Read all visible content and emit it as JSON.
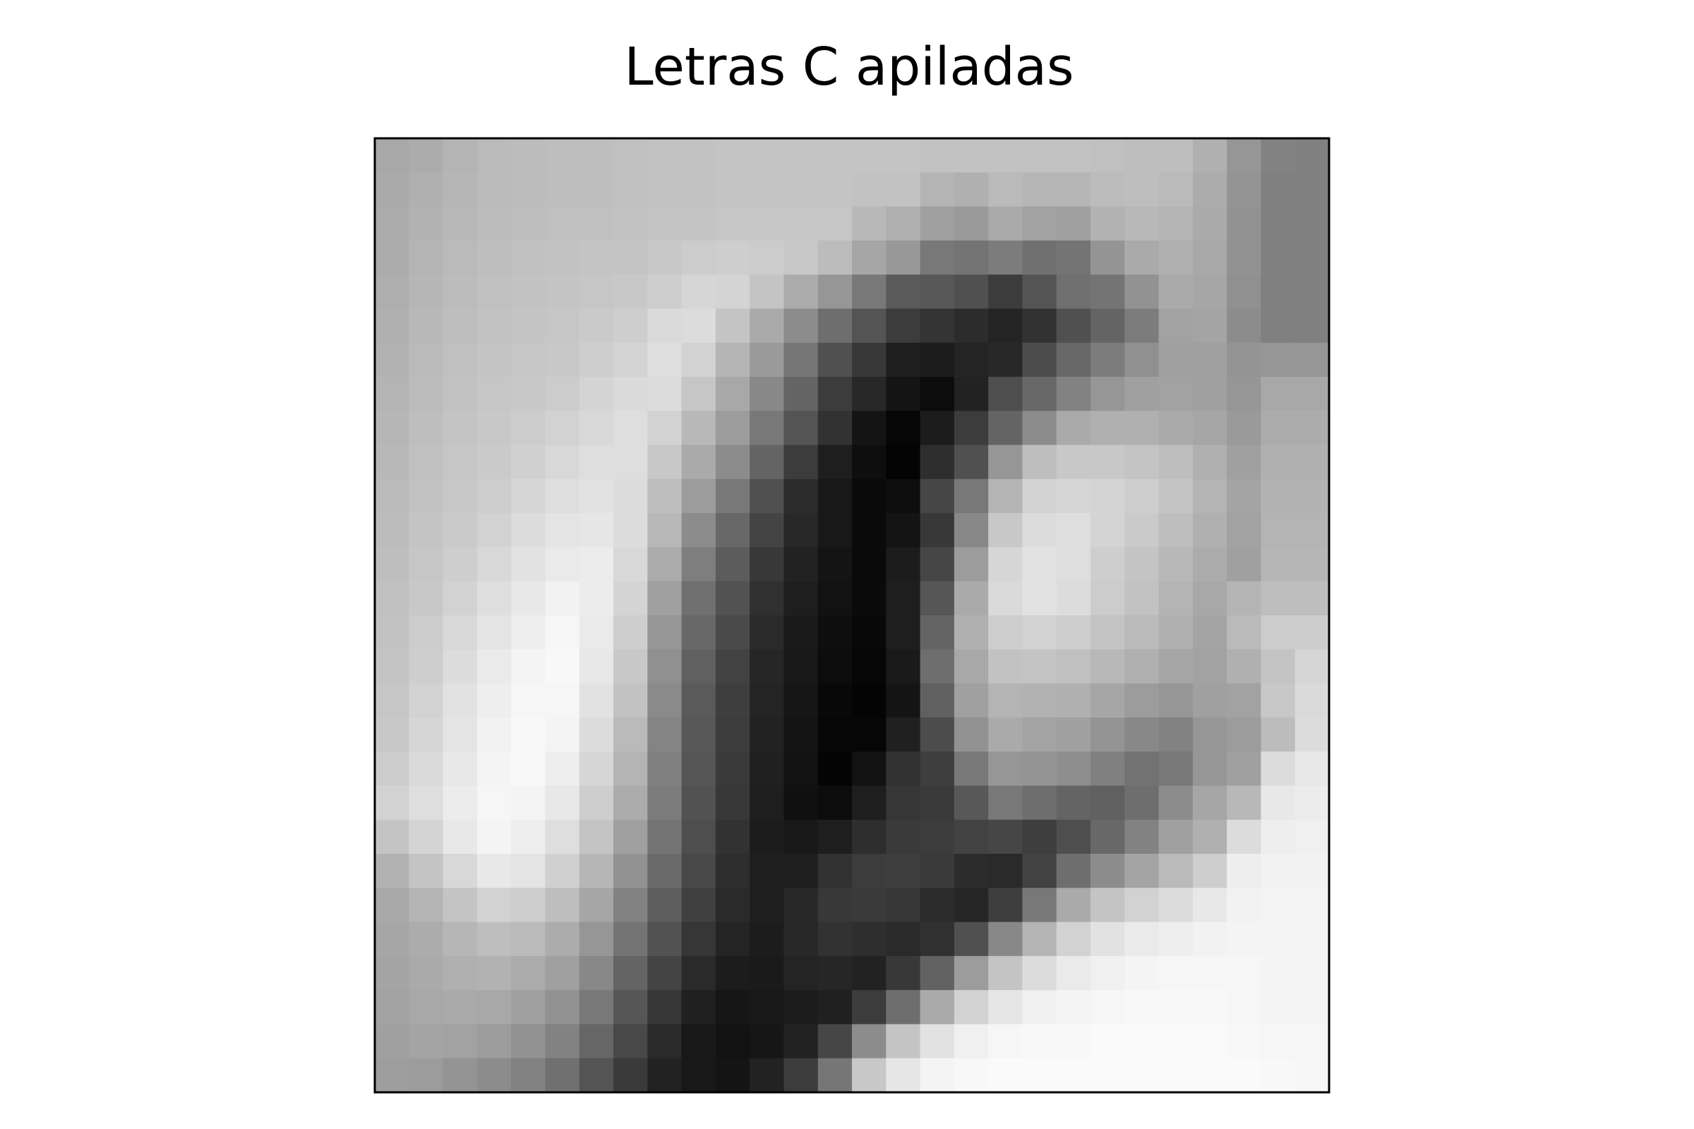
{
  "chart_data": {
    "type": "heatmap",
    "title": "Letras C apiladas",
    "xlabel": "",
    "ylabel": "",
    "axes_ticks": false,
    "colormap": "gray",
    "grid": false,
    "rows": 28,
    "cols": 28,
    "vmin": 0,
    "vmax": 255,
    "values": [
      [
        168,
        172,
        180,
        186,
        188,
        190,
        190,
        192,
        194,
        194,
        196,
        196,
        196,
        196,
        196,
        196,
        194,
        194,
        194,
        194,
        194,
        192,
        190,
        190,
        176,
        150,
        130,
        128
      ],
      [
        170,
        176,
        182,
        186,
        188,
        190,
        190,
        192,
        194,
        194,
        196,
        196,
        196,
        196,
        194,
        194,
        180,
        176,
        186,
        182,
        182,
        188,
        190,
        186,
        172,
        148,
        128,
        128
      ],
      [
        172,
        178,
        184,
        188,
        190,
        192,
        192,
        194,
        196,
        196,
        198,
        198,
        198,
        198,
        184,
        176,
        160,
        154,
        170,
        162,
        160,
        178,
        184,
        180,
        170,
        146,
        128,
        128
      ],
      [
        172,
        180,
        186,
        190,
        192,
        194,
        196,
        196,
        200,
        204,
        206,
        204,
        200,
        188,
        166,
        152,
        120,
        116,
        124,
        112,
        116,
        148,
        170,
        176,
        168,
        146,
        128,
        128
      ],
      [
        174,
        182,
        188,
        192,
        194,
        196,
        198,
        200,
        206,
        214,
        212,
        196,
        172,
        150,
        120,
        90,
        88,
        80,
        60,
        84,
        112,
        116,
        146,
        170,
        166,
        144,
        128,
        128
      ],
      [
        176,
        184,
        190,
        194,
        196,
        198,
        202,
        206,
        218,
        220,
        196,
        170,
        140,
        110,
        84,
        60,
        52,
        44,
        36,
        50,
        80,
        100,
        124,
        162,
        164,
        140,
        128,
        128
      ],
      [
        178,
        186,
        192,
        196,
        198,
        200,
        206,
        212,
        222,
        210,
        180,
        154,
        118,
        80,
        56,
        30,
        28,
        36,
        40,
        76,
        104,
        124,
        144,
        160,
        160,
        148,
        150,
        150
      ],
      [
        180,
        188,
        194,
        198,
        200,
        204,
        212,
        218,
        220,
        198,
        168,
        136,
        100,
        60,
        40,
        20,
        12,
        34,
        78,
        104,
        130,
        150,
        160,
        162,
        160,
        150,
        168,
        168
      ],
      [
        182,
        190,
        196,
        200,
        204,
        210,
        216,
        222,
        210,
        184,
        156,
        120,
        84,
        50,
        20,
        6,
        28,
        60,
        100,
        140,
        170,
        176,
        176,
        170,
        166,
        154,
        172,
        172
      ],
      [
        184,
        192,
        198,
        202,
        208,
        216,
        222,
        222,
        200,
        170,
        140,
        100,
        60,
        30,
        14,
        4,
        46,
        80,
        150,
        190,
        200,
        200,
        196,
        190,
        176,
        160,
        176,
        176
      ],
      [
        186,
        194,
        200,
        206,
        214,
        222,
        226,
        220,
        190,
        156,
        120,
        80,
        44,
        24,
        10,
        14,
        70,
        120,
        180,
        210,
        214,
        212,
        206,
        196,
        180,
        164,
        178,
        178
      ],
      [
        188,
        196,
        202,
        210,
        220,
        228,
        230,
        220,
        184,
        140,
        104,
        68,
        40,
        24,
        10,
        20,
        56,
        136,
        200,
        220,
        222,
        212,
        202,
        190,
        176,
        162,
        180,
        180
      ],
      [
        190,
        198,
        206,
        216,
        226,
        234,
        236,
        216,
        172,
        126,
        92,
        56,
        34,
        20,
        10,
        28,
        70,
        156,
        214,
        226,
        222,
        206,
        196,
        184,
        172,
        160,
        182,
        182
      ],
      [
        192,
        200,
        210,
        222,
        232,
        242,
        236,
        212,
        160,
        112,
        82,
        48,
        30,
        18,
        10,
        30,
        86,
        170,
        218,
        226,
        220,
        204,
        194,
        180,
        168,
        180,
        190,
        190
      ],
      [
        194,
        204,
        216,
        228,
        238,
        246,
        234,
        206,
        150,
        104,
        74,
        42,
        26,
        14,
        8,
        30,
        100,
        176,
        206,
        210,
        206,
        196,
        186,
        176,
        164,
        186,
        204,
        204
      ],
      [
        196,
        206,
        220,
        234,
        244,
        248,
        232,
        200,
        144,
        96,
        66,
        38,
        24,
        12,
        6,
        26,
        110,
        168,
        194,
        196,
        192,
        184,
        176,
        166,
        162,
        176,
        196,
        214
      ],
      [
        198,
        210,
        226,
        238,
        246,
        246,
        226,
        194,
        138,
        90,
        62,
        36,
        22,
        8,
        4,
        20,
        96,
        160,
        180,
        178,
        176,
        166,
        156,
        150,
        160,
        162,
        200,
        218
      ],
      [
        200,
        214,
        228,
        242,
        248,
        244,
        220,
        186,
        132,
        88,
        60,
        34,
        20,
        6,
        6,
        32,
        76,
        146,
        170,
        164,
        160,
        148,
        136,
        130,
        150,
        156,
        188,
        220
      ],
      [
        204,
        218,
        232,
        244,
        248,
        238,
        214,
        180,
        128,
        86,
        58,
        32,
        18,
        4,
        18,
        50,
        62,
        120,
        150,
        148,
        142,
        128,
        114,
        120,
        150,
        160,
        220,
        232
      ],
      [
        210,
        222,
        236,
        246,
        244,
        232,
        206,
        172,
        124,
        82,
        56,
        30,
        16,
        12,
        30,
        54,
        58,
        88,
        120,
        110,
        100,
        96,
        110,
        140,
        166,
        184,
        232,
        236
      ],
      [
        196,
        212,
        232,
        244,
        238,
        222,
        196,
        160,
        116,
        78,
        50,
        28,
        24,
        30,
        46,
        58,
        60,
        66,
        70,
        62,
        78,
        104,
        130,
        160,
        176,
        220,
        238,
        240
      ],
      [
        178,
        196,
        216,
        232,
        228,
        208,
        182,
        146,
        106,
        72,
        46,
        30,
        30,
        50,
        60,
        62,
        58,
        44,
        42,
        66,
        110,
        140,
        164,
        186,
        206,
        238,
        242,
        242
      ],
      [
        168,
        180,
        196,
        210,
        206,
        190,
        166,
        130,
        94,
        64,
        42,
        30,
        40,
        56,
        58,
        54,
        44,
        38,
        62,
        120,
        170,
        196,
        210,
        220,
        232,
        242,
        244,
        244
      ],
      [
        166,
        172,
        182,
        190,
        186,
        172,
        150,
        116,
        82,
        54,
        36,
        28,
        40,
        50,
        46,
        42,
        48,
        80,
        136,
        180,
        210,
        226,
        234,
        238,
        242,
        244,
        244,
        244
      ],
      [
        164,
        170,
        176,
        178,
        172,
        160,
        136,
        100,
        68,
        42,
        28,
        26,
        36,
        38,
        34,
        56,
        98,
        156,
        196,
        220,
        234,
        240,
        244,
        246,
        246,
        246,
        244,
        244
      ],
      [
        162,
        168,
        170,
        168,
        160,
        146,
        120,
        86,
        54,
        32,
        22,
        24,
        28,
        32,
        60,
        110,
        170,
        210,
        230,
        240,
        244,
        246,
        248,
        248,
        248,
        246,
        244,
        244
      ],
      [
        160,
        164,
        162,
        156,
        146,
        130,
        102,
        72,
        42,
        24,
        18,
        22,
        34,
        70,
        140,
        196,
        226,
        240,
        246,
        248,
        248,
        250,
        250,
        250,
        250,
        248,
        246,
        246
      ],
      [
        158,
        156,
        148,
        140,
        130,
        112,
        84,
        58,
        34,
        24,
        20,
        34,
        60,
        118,
        200,
        230,
        244,
        248,
        250,
        250,
        250,
        250,
        250,
        250,
        250,
        250,
        248,
        246
      ]
    ]
  }
}
